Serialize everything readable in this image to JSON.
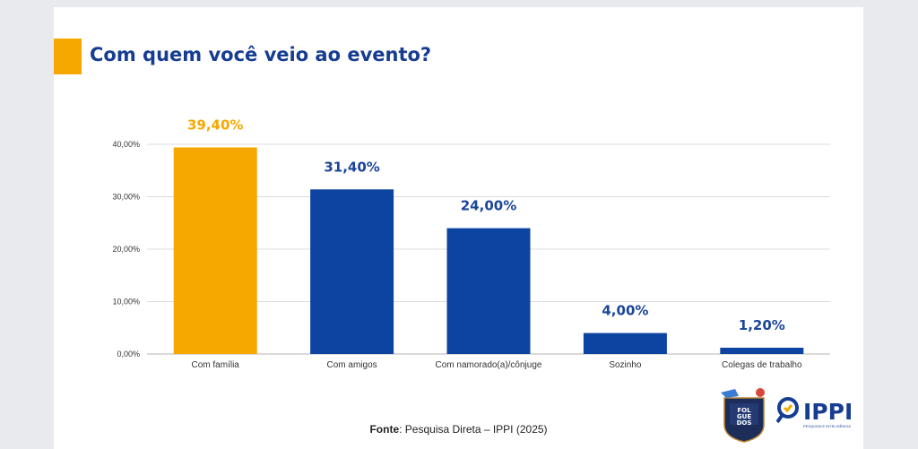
{
  "title": "Com quem você veio ao evento?",
  "chart_data": {
    "type": "bar",
    "categories": [
      "Com família",
      "Com amigos",
      "Com namorado(a)/cônjuge",
      "Sozinho",
      "Colegas de trabalho"
    ],
    "values": [
      39.4,
      31.4,
      24.0,
      4.0,
      1.2
    ],
    "value_labels": [
      "39,40%",
      "31,40%",
      "24,00%",
      "4,00%",
      "1,20%"
    ],
    "yticks": [
      0,
      10,
      20,
      30,
      40
    ],
    "ytick_labels": [
      "0,00%",
      "10,00%",
      "20,00%",
      "30,00%",
      "40,00%"
    ],
    "ylim": [
      0,
      40
    ],
    "grid": true,
    "highlight_index": 0,
    "colors": {
      "bar": "#0e44a1",
      "highlight": "#f6a800",
      "label": "#1b4599",
      "highlight_label": "#f6a800"
    }
  },
  "source": {
    "label": "Fonte",
    "text": ": Pesquisa Direta – IPPI (2025)"
  },
  "logos": {
    "folguedos": {
      "icon": "folguedos-badge-logo",
      "text": "FOLGUEDOS"
    },
    "ippi": {
      "icon": "ippi-magnifier-logo",
      "text": "IPPI",
      "subtitle": "PESQUISA E INTELIGÊNCIA"
    }
  }
}
